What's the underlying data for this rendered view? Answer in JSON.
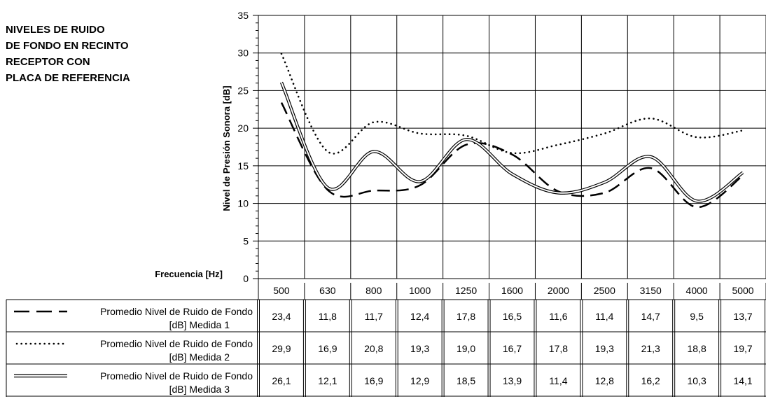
{
  "title_lines": [
    "NIVELES DE RUIDO",
    "DE FONDO EN RECINTO",
    "RECEPTOR CON",
    "PLACA DE REFERENCIA"
  ],
  "chart_data": {
    "type": "line",
    "title": "NIVELES DE RUIDO DE FONDO EN RECINTO RECEPTOR CON PLACA DE REFERENCIA",
    "xlabel": "Frecuencia [Hz]",
    "ylabel": "Nivel de Presión Sonora [dB]",
    "ylim": [
      0,
      35
    ],
    "yticks": [
      0,
      5,
      10,
      15,
      20,
      25,
      30,
      35
    ],
    "grid": true,
    "legend_placement": "data-table-below",
    "categories": [
      "500",
      "630",
      "800",
      "1000",
      "1250",
      "1600",
      "2000",
      "2500",
      "3150",
      "4000",
      "5000"
    ],
    "series": [
      {
        "name_line1": "Promedio Nivel de Ruido de Fondo",
        "name_line2": "[dB] Medida 1",
        "style": "dashed",
        "values": [
          23.4,
          11.8,
          11.7,
          12.4,
          17.8,
          16.5,
          11.6,
          11.4,
          14.7,
          9.5,
          13.7
        ],
        "labels": [
          "23,4",
          "11,8",
          "11,7",
          "12,4",
          "17,8",
          "16,5",
          "11,6",
          "11,4",
          "14,7",
          "9,5",
          "13,7"
        ]
      },
      {
        "name_line1": "Promedio Nivel de Ruido de Fondo",
        "name_line2": "[dB] Medida 2",
        "style": "dotted",
        "values": [
          29.9,
          16.9,
          20.8,
          19.3,
          19.0,
          16.7,
          17.8,
          19.3,
          21.3,
          18.8,
          19.7
        ],
        "labels": [
          "29,9",
          "16,9",
          "20,8",
          "19,3",
          "19,0",
          "16,7",
          "17,8",
          "19,3",
          "21,3",
          "18,8",
          "19,7"
        ]
      },
      {
        "name_line1": "Promedio Nivel de Ruido de Fondo",
        "name_line2": "[dB] Medida 3",
        "style": "double",
        "values": [
          26.1,
          12.1,
          16.9,
          12.9,
          18.5,
          13.9,
          11.4,
          12.8,
          16.2,
          10.3,
          14.1
        ],
        "labels": [
          "26,1",
          "12,1",
          "16,9",
          "12,9",
          "18,5",
          "13,9",
          "11,4",
          "12,8",
          "16,2",
          "10,3",
          "14,1"
        ]
      }
    ]
  }
}
